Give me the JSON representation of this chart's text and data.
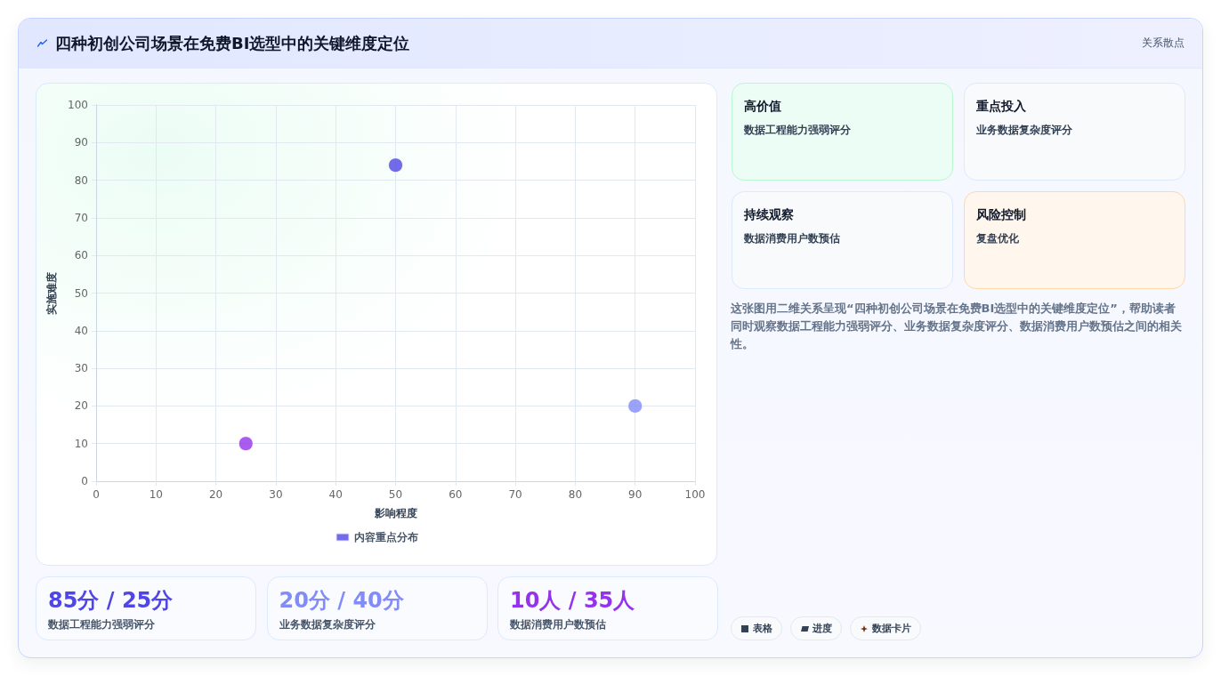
{
  "chart_data": [
    {
      "type": "scatter",
      "title": "四种初创公司场景在免费BI选型中的关键维度定位",
      "xlabel": "影响程度",
      "ylabel": "实施难度",
      "annotations": [
        "关系散点"
      ],
      "x": [
        50,
        90,
        25
      ],
      "series": [
        {
          "name": "内容重点分布",
          "color": "#4f46e5",
          "colors": [
            "#4f46e5",
            "#818cf8",
            "#9333ea"
          ],
          "values": [
            84,
            20,
            10
          ]
        }
      ],
      "xlim": [
        0,
        100
      ],
      "ylim": [
        0,
        100
      ],
      "xticks": [
        0,
        10,
        20,
        30,
        40,
        50,
        60,
        70,
        80,
        90,
        100
      ],
      "yticks": [
        0,
        10,
        20,
        30,
        40,
        50,
        60,
        70,
        80,
        90,
        100
      ],
      "grid": true,
      "legend": "bottom",
      "marker": "circle"
    },
    {
      "type": "other",
      "annotations": [
        "高价值",
        "数据工程能力强弱评分",
        "重点投入",
        "业务数据复杂度评分",
        "持续观察",
        "数据消费用户数预估",
        "风险控制",
        "复盘优化",
        "这张图用二维关系呈现“四种初创公司场景在免费BI选型中的关键维度定位”，帮助读者同时观察数据工程能力强弱评分、业务数据复杂度评分、数据消费用户数预估之间的相关性。"
      ]
    },
    {
      "type": "other",
      "annotations": [
        "85分 / 25分",
        "数据工程能力强弱评分",
        "20分 / 40分",
        "业务数据复杂度评分",
        "10人 / 35人",
        "数据消费用户数预估"
      ]
    },
    {
      "type": "other",
      "annotations": [
        "表格",
        "进度",
        "数据卡片"
      ]
    }
  ]
}
